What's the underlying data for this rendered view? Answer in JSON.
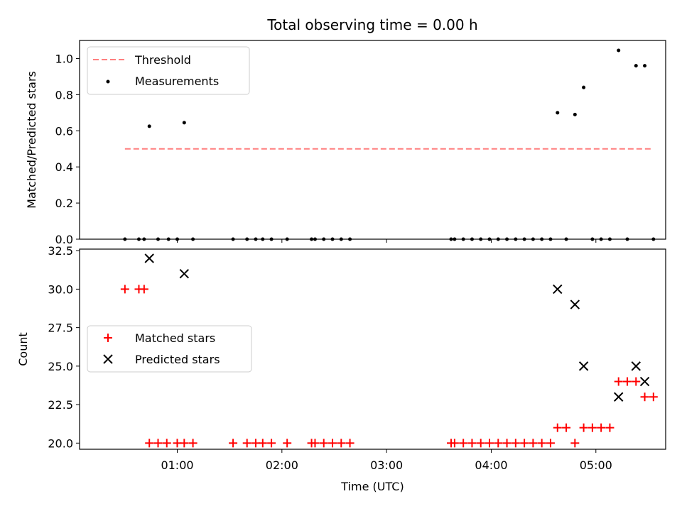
{
  "chart_data": {
    "title": "Total observing time = 0.00 h",
    "xlabel": "Time (UTC)",
    "x_ticks": [
      "01:00",
      "02:00",
      "03:00",
      "04:00",
      "05:00"
    ],
    "colors": {
      "threshold": "#ff7f7f",
      "measurements": "#000000",
      "matched": "#ff0000",
      "predicted": "#000000"
    },
    "top": {
      "type": "scatter",
      "ylabel": "Matched/Predicted stars",
      "ylim": [
        0.0,
        1.1
      ],
      "y_ticks": [
        "0.0",
        "0.2",
        "0.4",
        "0.6",
        "0.8",
        "1.0"
      ],
      "legend": {
        "placement": "upper-left",
        "threshold_label": "Threshold",
        "measurements_label": "Measurements"
      },
      "threshold": {
        "value": 0.5,
        "x_start": "00:30",
        "x_end": "05:33"
      },
      "measurements": [
        {
          "x": "00:30",
          "y": 0
        },
        {
          "x": "00:38",
          "y": 0
        },
        {
          "x": "00:41",
          "y": 0
        },
        {
          "x": "00:44",
          "y": 0.625
        },
        {
          "x": "00:49",
          "y": 0
        },
        {
          "x": "00:55",
          "y": 0
        },
        {
          "x": "01:00",
          "y": 0
        },
        {
          "x": "01:04",
          "y": 0.645
        },
        {
          "x": "01:09",
          "y": 0
        },
        {
          "x": "01:32",
          "y": 0
        },
        {
          "x": "01:40",
          "y": 0
        },
        {
          "x": "01:45",
          "y": 0
        },
        {
          "x": "01:49",
          "y": 0
        },
        {
          "x": "01:54",
          "y": 0
        },
        {
          "x": "02:03",
          "y": 0
        },
        {
          "x": "02:17",
          "y": 0
        },
        {
          "x": "02:19",
          "y": 0
        },
        {
          "x": "02:24",
          "y": 0
        },
        {
          "x": "02:29",
          "y": 0
        },
        {
          "x": "02:34",
          "y": 0
        },
        {
          "x": "02:39",
          "y": 0
        },
        {
          "x": "03:37",
          "y": 0
        },
        {
          "x": "03:39",
          "y": 0
        },
        {
          "x": "03:44",
          "y": 0
        },
        {
          "x": "03:49",
          "y": 0
        },
        {
          "x": "03:54",
          "y": 0
        },
        {
          "x": "03:59",
          "y": 0
        },
        {
          "x": "04:04",
          "y": 0
        },
        {
          "x": "04:09",
          "y": 0
        },
        {
          "x": "04:14",
          "y": 0
        },
        {
          "x": "04:19",
          "y": 0
        },
        {
          "x": "04:24",
          "y": 0
        },
        {
          "x": "04:29",
          "y": 0
        },
        {
          "x": "04:34",
          "y": 0
        },
        {
          "x": "04:38",
          "y": 0.7
        },
        {
          "x": "04:43",
          "y": 0
        },
        {
          "x": "04:48",
          "y": 0.69
        },
        {
          "x": "04:53",
          "y": 0.84
        },
        {
          "x": "04:58",
          "y": 0
        },
        {
          "x": "05:03",
          "y": 0
        },
        {
          "x": "05:08",
          "y": 0
        },
        {
          "x": "05:13",
          "y": 1.045
        },
        {
          "x": "05:18",
          "y": 0
        },
        {
          "x": "05:23",
          "y": 0.96
        },
        {
          "x": "05:28",
          "y": 0.96
        },
        {
          "x": "05:33",
          "y": 0
        }
      ]
    },
    "bottom": {
      "type": "scatter",
      "ylabel": "Count",
      "ylim": [
        19.6,
        32.6
      ],
      "y_ticks": [
        "20.0",
        "22.5",
        "25.0",
        "27.5",
        "30.0",
        "32.5"
      ],
      "legend": {
        "placement": "center-left",
        "matched_label": "Matched stars",
        "predicted_label": "Predicted stars"
      },
      "matched": [
        {
          "x": "00:30",
          "y": 30
        },
        {
          "x": "00:38",
          "y": 30
        },
        {
          "x": "00:41",
          "y": 30
        },
        {
          "x": "00:44",
          "y": 20
        },
        {
          "x": "00:49",
          "y": 20
        },
        {
          "x": "00:54",
          "y": 20
        },
        {
          "x": "01:00",
          "y": 20
        },
        {
          "x": "01:04",
          "y": 20
        },
        {
          "x": "01:09",
          "y": 20
        },
        {
          "x": "01:32",
          "y": 20
        },
        {
          "x": "01:40",
          "y": 20
        },
        {
          "x": "01:45",
          "y": 20
        },
        {
          "x": "01:49",
          "y": 20
        },
        {
          "x": "01:54",
          "y": 20
        },
        {
          "x": "02:03",
          "y": 20
        },
        {
          "x": "02:17",
          "y": 20
        },
        {
          "x": "02:19",
          "y": 20
        },
        {
          "x": "02:24",
          "y": 20
        },
        {
          "x": "02:29",
          "y": 20
        },
        {
          "x": "02:34",
          "y": 20
        },
        {
          "x": "02:39",
          "y": 20
        },
        {
          "x": "03:37",
          "y": 20
        },
        {
          "x": "03:39",
          "y": 20
        },
        {
          "x": "03:44",
          "y": 20
        },
        {
          "x": "03:49",
          "y": 20
        },
        {
          "x": "03:54",
          "y": 20
        },
        {
          "x": "03:59",
          "y": 20
        },
        {
          "x": "04:04",
          "y": 20
        },
        {
          "x": "04:09",
          "y": 20
        },
        {
          "x": "04:14",
          "y": 20
        },
        {
          "x": "04:19",
          "y": 20
        },
        {
          "x": "04:24",
          "y": 20
        },
        {
          "x": "04:29",
          "y": 20
        },
        {
          "x": "04:34",
          "y": 20
        },
        {
          "x": "04:38",
          "y": 21
        },
        {
          "x": "04:43",
          "y": 21
        },
        {
          "x": "04:48",
          "y": 20
        },
        {
          "x": "04:53",
          "y": 21
        },
        {
          "x": "04:58",
          "y": 21
        },
        {
          "x": "05:03",
          "y": 21
        },
        {
          "x": "05:08",
          "y": 21
        },
        {
          "x": "05:13",
          "y": 24
        },
        {
          "x": "05:18",
          "y": 24
        },
        {
          "x": "05:23",
          "y": 24
        },
        {
          "x": "05:28",
          "y": 23
        },
        {
          "x": "05:33",
          "y": 23
        }
      ],
      "predicted": [
        {
          "x": "00:44",
          "y": 32
        },
        {
          "x": "01:04",
          "y": 31
        },
        {
          "x": "04:38",
          "y": 30
        },
        {
          "x": "04:48",
          "y": 29
        },
        {
          "x": "04:53",
          "y": 25
        },
        {
          "x": "05:13",
          "y": 23
        },
        {
          "x": "05:23",
          "y": 25
        },
        {
          "x": "05:28",
          "y": 24
        }
      ]
    }
  }
}
